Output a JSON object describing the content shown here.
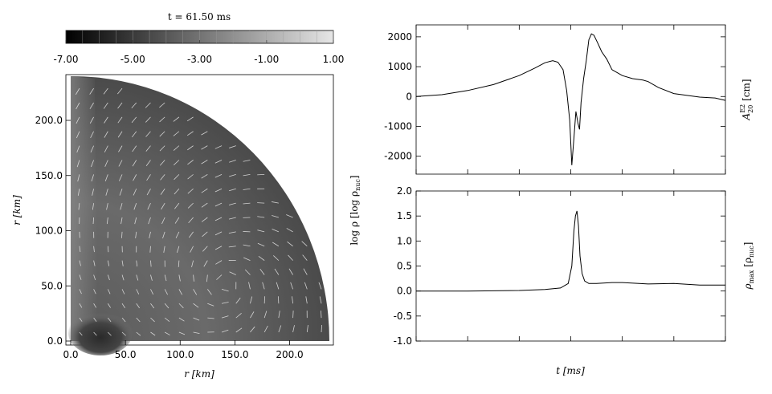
{
  "chart_data": [
    {
      "type": "heatmap",
      "title": "t = 61.50 ms",
      "colorbar": {
        "label": "log ρ [log ρ",
        "label_sub": "nuc",
        "label_end": "]",
        "ticks": [
          "-7.00",
          "-5.00",
          "-3.00",
          "-1.00",
          "1.00"
        ],
        "range": [
          -7,
          1
        ]
      },
      "xlabel": "r [km]",
      "ylabel": "r [km]",
      "xlim": [
        0,
        240
      ],
      "ylim": [
        0,
        240
      ],
      "xticks": [
        "0.0",
        "50.0",
        "100.0",
        "150.0",
        "200.0"
      ],
      "yticks": [
        "0.0",
        "50.0",
        "100.0",
        "150.0",
        "200.0"
      ],
      "domain_radius_km": 240,
      "overlay": "velocity vectors"
    },
    {
      "type": "line",
      "ylabel": "A",
      "ylabel_sup": "E2",
      "ylabel_sub": "20",
      "ylabel_unit": " [cm]",
      "xlim": [
        0,
        60
      ],
      "ylim": [
        -2600,
        2400
      ],
      "yticks": [
        "2000",
        "1000",
        "0",
        "-1000",
        "-2000"
      ],
      "series": [
        {
          "x": [
            0,
            5,
            10,
            15,
            20,
            23,
            25,
            26.5,
            27.5,
            28.5,
            29.2,
            29.8,
            30.2,
            30.6,
            31.0,
            31.4,
            31.7,
            32.0,
            32.5,
            33.0,
            33.5,
            34.0,
            34.5,
            35.2,
            36,
            37,
            38,
            40,
            42,
            44,
            45,
            47,
            50,
            55,
            58,
            60
          ],
          "y": [
            0,
            60,
            200,
            400,
            700,
            950,
            1130,
            1200,
            1150,
            900,
            200,
            -800,
            -2300,
            -1400,
            -500,
            -900,
            -1100,
            -200,
            600,
            1200,
            1900,
            2100,
            2050,
            1800,
            1500,
            1250,
            900,
            700,
            600,
            550,
            500,
            300,
            100,
            -20,
            -50,
            -130
          ]
        }
      ]
    },
    {
      "type": "line",
      "ylabel": "ρ",
      "ylabel_sub": "max",
      "ylabel_unit": " [ρ",
      "ylabel_unit_sub": "nuc",
      "ylabel_unit_end": "]",
      "xlabel": "t [ms]",
      "xlim": [
        0,
        60
      ],
      "ylim": [
        -1.0,
        2.0
      ],
      "yticks": [
        "2.0",
        "1.5",
        "1.0",
        "0.5",
        "0.0",
        "-0.5",
        "-1.0"
      ],
      "xticks": [
        "0",
        "10",
        "20",
        "30",
        "40",
        "50",
        "60"
      ],
      "series": [
        {
          "x": [
            0,
            10,
            20,
            25,
            28,
            29.5,
            30.2,
            30.6,
            30.9,
            31.2,
            31.5,
            31.8,
            32.2,
            32.7,
            33.5,
            35,
            38,
            40,
            45,
            50,
            55,
            60
          ],
          "y": [
            0,
            0,
            0.01,
            0.03,
            0.06,
            0.15,
            0.5,
            1.2,
            1.5,
            1.6,
            1.3,
            0.7,
            0.35,
            0.2,
            0.15,
            0.15,
            0.17,
            0.17,
            0.14,
            0.15,
            0.12,
            0.12
          ]
        }
      ]
    }
  ]
}
